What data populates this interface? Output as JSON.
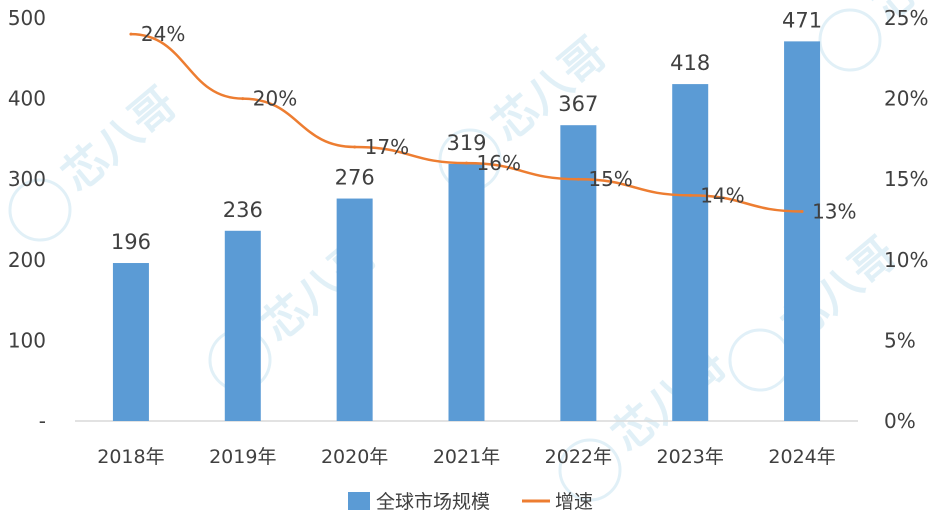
{
  "chart_data": {
    "type": "bar",
    "categories": [
      "2018年",
      "2019年",
      "2020年",
      "2021年",
      "2022年",
      "2023年",
      "2024年"
    ],
    "series": [
      {
        "name": "全球市场规模",
        "type": "bar",
        "axis": "left",
        "values": [
          196,
          236,
          276,
          319,
          367,
          418,
          471
        ],
        "labels": [
          "196",
          "236",
          "276",
          "319",
          "367",
          "418",
          "471"
        ],
        "color": "#5B9BD5"
      },
      {
        "name": "增速",
        "type": "line",
        "axis": "right",
        "values": [
          24,
          20,
          17,
          16,
          15,
          14,
          13
        ],
        "labels": [
          "24%",
          "20%",
          "17%",
          "16%",
          "15%",
          "14%",
          "13%"
        ],
        "color": "#ED7D31"
      }
    ],
    "y_left": {
      "ylim": [
        0,
        500
      ],
      "ticks": [
        "-",
        "100",
        "200",
        "300",
        "400",
        "500"
      ]
    },
    "y_right": {
      "ylim": [
        0,
        25
      ],
      "ticks": [
        "0%",
        "5%",
        "10%",
        "15%",
        "20%",
        "25%"
      ]
    },
    "legend_position": "bottom",
    "grid": false
  },
  "watermark": {
    "text": "芯八哥",
    "color": "#c9e4f2"
  }
}
